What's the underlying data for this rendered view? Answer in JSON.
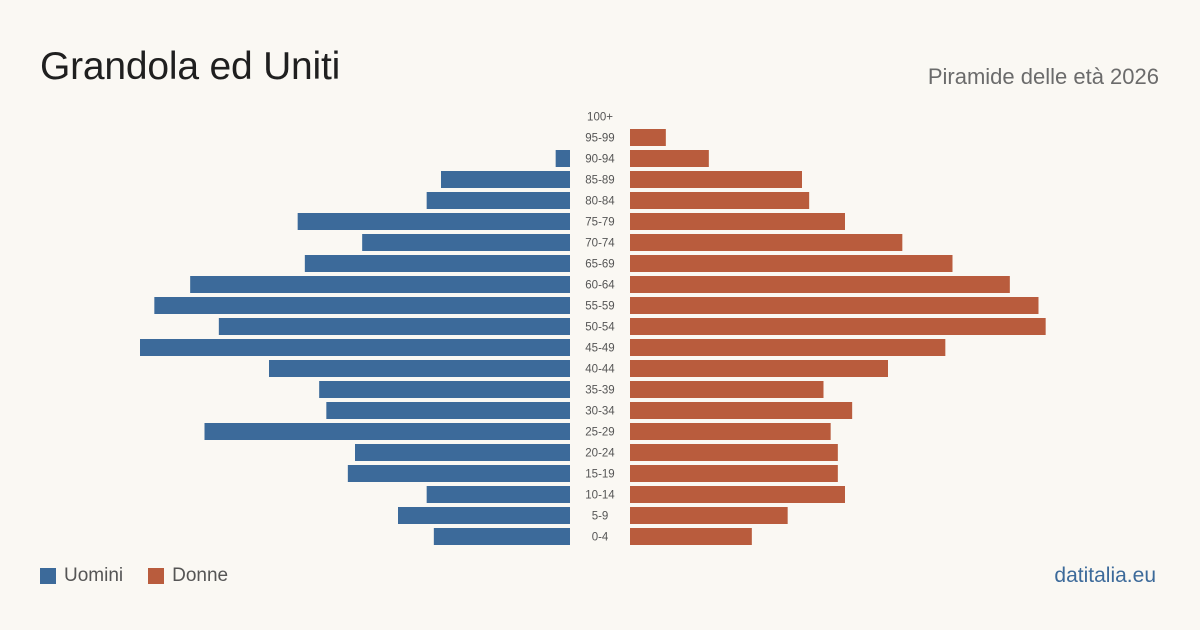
{
  "header": {
    "title": "Grandola ed Uniti",
    "subtitle": "Piramide delle età 2026"
  },
  "colors": {
    "men": "#3c6a9a",
    "women": "#b95c3d",
    "background": "#faf8f3"
  },
  "legend": {
    "men_label": "Uomini",
    "women_label": "Donne"
  },
  "brand": "datitalia.eu",
  "chart_data": {
    "type": "bar",
    "orientation": "horizontal",
    "layout": "population-pyramid",
    "categories": [
      "100+",
      "95-99",
      "90-94",
      "85-89",
      "80-84",
      "75-79",
      "70-74",
      "65-69",
      "60-64",
      "55-59",
      "50-54",
      "45-49",
      "40-44",
      "35-39",
      "30-34",
      "25-29",
      "20-24",
      "15-19",
      "10-14",
      "5-9",
      "0-4"
    ],
    "series": [
      {
        "name": "Uomini",
        "side": "left",
        "values": [
          0,
          0,
          2,
          18,
          20,
          38,
          29,
          37,
          53,
          58,
          49,
          60,
          42,
          35,
          34,
          51,
          30,
          31,
          20,
          24,
          19
        ]
      },
      {
        "name": "Donne",
        "side": "right",
        "values": [
          0,
          5,
          11,
          24,
          25,
          30,
          38,
          45,
          53,
          57,
          58,
          44,
          36,
          27,
          31,
          28,
          29,
          29,
          30,
          22,
          17
        ]
      }
    ],
    "xlim": [
      0,
      60
    ],
    "grid": false,
    "legend_position": "bottom-left"
  }
}
